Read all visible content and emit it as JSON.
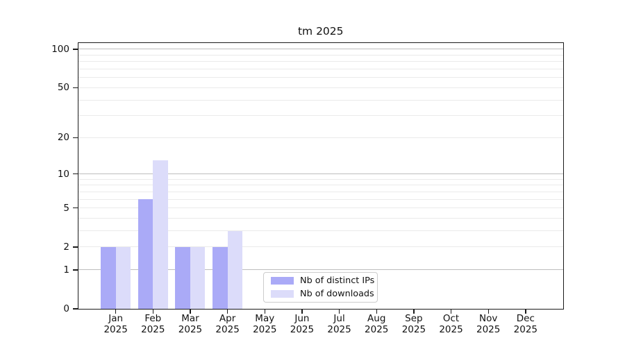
{
  "chart_data": {
    "type": "bar",
    "title": "tm 2025",
    "year_label": "2025",
    "categories": [
      "Jan",
      "Feb",
      "Mar",
      "Apr",
      "May",
      "Jun",
      "Jul",
      "Aug",
      "Sep",
      "Oct",
      "Nov",
      "Dec"
    ],
    "series": [
      {
        "name": "Nb of distinct IPs",
        "color": "#aaaaf7",
        "values": [
          2,
          6,
          2,
          2,
          0,
          0,
          0,
          0,
          0,
          0,
          0,
          0
        ]
      },
      {
        "name": "Nb of downloads",
        "color": "#dcdcfa",
        "values": [
          2,
          13,
          2,
          3,
          0,
          0,
          0,
          0,
          0,
          0,
          0,
          0
        ]
      }
    ],
    "yaxis": {
      "scale": "log1p",
      "ticks": [
        0,
        1,
        2,
        5,
        10,
        20,
        50,
        100
      ],
      "major_gridlines": [
        1,
        10,
        100
      ],
      "minor_gridlines": [
        2,
        3,
        4,
        5,
        6,
        7,
        8,
        9,
        20,
        30,
        40,
        50,
        60,
        70,
        80,
        90
      ],
      "ylim": [
        0,
        112
      ]
    },
    "xaxis": {
      "label_lines": 2
    },
    "legend": {
      "position": "lower center"
    },
    "grid": true,
    "colors": {
      "major_grid": "#bdbdbd",
      "minor_grid": "#eaeaea",
      "spine": "#1a1a1a",
      "background": "#ffffff"
    }
  }
}
